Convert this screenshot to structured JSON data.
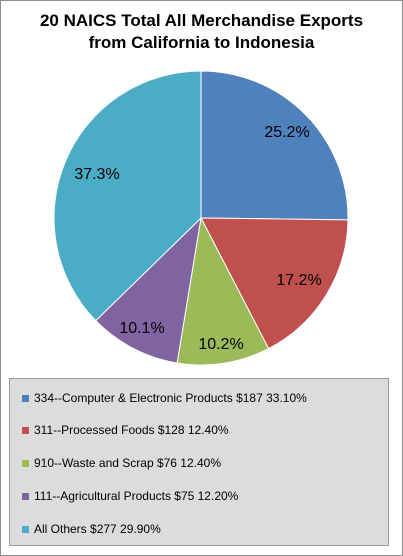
{
  "chart_data": {
    "type": "pie",
    "title_lines": [
      "20 NAICS Total All Merchandise Exports",
      "from California to Indonesia"
    ],
    "slices": [
      {
        "label": "25.2%",
        "value": 25.2,
        "color": "#4f81bd"
      },
      {
        "label": "17.2%",
        "value": 17.2,
        "color": "#c0504d"
      },
      {
        "label": "10.2%",
        "value": 10.2,
        "color": "#9bbb59"
      },
      {
        "label": "10.1%",
        "value": 10.1,
        "color": "#8064a2"
      },
      {
        "label": "37.3%",
        "value": 37.3,
        "color": "#4bacc6"
      }
    ],
    "legend": [
      {
        "text": "334--Computer & Electronic Products $187 33.10%",
        "color": "#4f81bd"
      },
      {
        "text": "311--Processed Foods $128 12.40%",
        "color": "#c0504d"
      },
      {
        "text": "910--Waste and Scrap $76 12.40%",
        "color": "#9bbb59"
      },
      {
        "text": "111--Agricultural Products $75 12.20%",
        "color": "#8064a2"
      },
      {
        "text": "All Others $277 29.90%",
        "color": "#4bacc6"
      }
    ],
    "legend_position": "bottom"
  }
}
